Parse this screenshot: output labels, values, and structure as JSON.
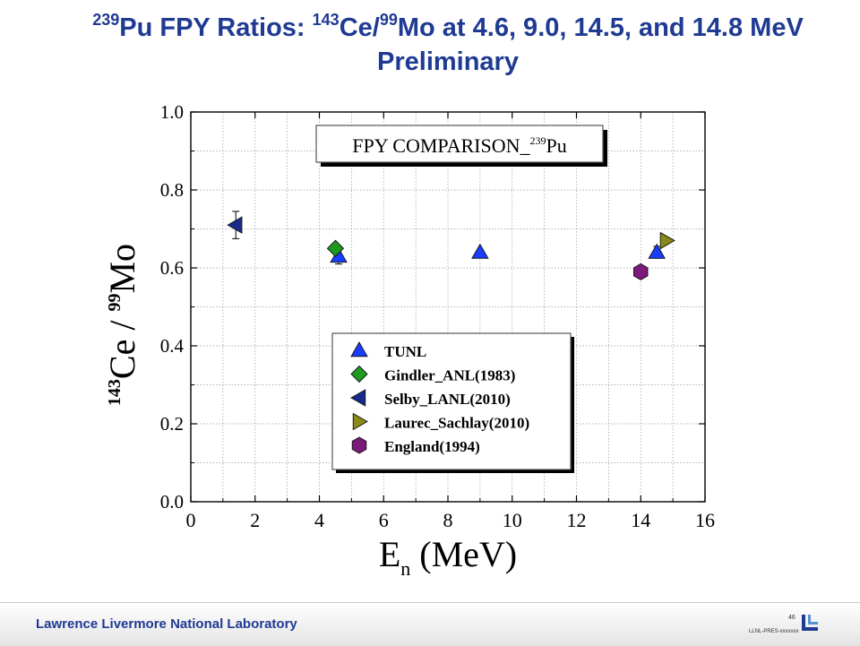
{
  "title": {
    "sup_pu": "239",
    "part1": "Pu FPY Ratios: ",
    "sup_ce": "143",
    "part2": "Ce/",
    "sup_mo": "99",
    "part3": "Mo at 4.6, 9.0, 14.5, and 14.8 MeV",
    "line2": "Preliminary"
  },
  "footer": {
    "lab_name": "Lawrence Livermore National Laboratory",
    "page_number": "46",
    "doc_id": "LLNL-PRES-xxxxxxx",
    "logo_icon": "llnl-logo-icon"
  },
  "chart_data": {
    "type": "scatter",
    "title_box": {
      "main": "FPY COMPARISON_",
      "sup": "239",
      "tail": "Pu"
    },
    "xlabel": {
      "main": "E",
      "sub": "n",
      "rest": "  (MeV)"
    },
    "ylabel": {
      "sup1": "143",
      "part1": "Ce / ",
      "sup2": "99",
      "part2": "Mo"
    },
    "xlim": [
      0,
      16
    ],
    "ylim": [
      0.0,
      1.0
    ],
    "xticks": [
      "0",
      "2",
      "4",
      "6",
      "8",
      "10",
      "12",
      "14",
      "16"
    ],
    "yticks": [
      "0.0",
      "0.2",
      "0.4",
      "0.6",
      "0.8",
      "1.0"
    ],
    "grid": true,
    "legend_position": "center-bottom",
    "series": [
      {
        "name": "TUNL",
        "marker": "triangle-up",
        "color": "#1a3cff",
        "points": [
          {
            "x": 4.6,
            "y": 0.63,
            "err": 0.02
          },
          {
            "x": 9.0,
            "y": 0.64,
            "err": 0.0
          },
          {
            "x": 14.5,
            "y": 0.64,
            "err": 0.015
          }
        ]
      },
      {
        "name": "Gindler_ANL(1983)",
        "marker": "diamond",
        "color": "#1e9a1e",
        "points": [
          {
            "x": 4.5,
            "y": 0.65,
            "err": 0.0
          }
        ]
      },
      {
        "name": "Selby_LANL(2010)",
        "marker": "triangle-left",
        "color": "#1a2a8c",
        "points": [
          {
            "x": 1.4,
            "y": 0.71,
            "err": 0.035
          }
        ]
      },
      {
        "name": "Laurec_Sachlay(2010)",
        "marker": "triangle-right",
        "color": "#8a8a1a",
        "points": [
          {
            "x": 14.8,
            "y": 0.67,
            "err": 0.0
          }
        ]
      },
      {
        "name": "England(1994)",
        "marker": "hexagon",
        "color": "#7a1a7a",
        "points": [
          {
            "x": 14.0,
            "y": 0.59,
            "err": 0.0
          }
        ]
      }
    ]
  }
}
